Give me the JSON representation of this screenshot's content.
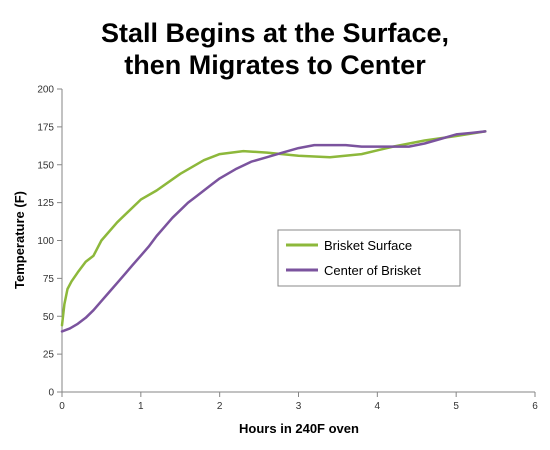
{
  "chart_data": {
    "type": "line",
    "title_lines": [
      "Stall  Begins at the Surface,",
      "then Migrates to Center"
    ],
    "xlabel": "Hours in 240F oven",
    "ylabel": "Temperature (F)",
    "xlim": [
      0,
      6
    ],
    "ylim": [
      0,
      200
    ],
    "xticks": [
      0,
      1,
      2,
      3,
      4,
      5,
      6
    ],
    "yticks": [
      0,
      25,
      50,
      75,
      100,
      125,
      150,
      175,
      200
    ],
    "grid": false,
    "legend_position": "center-right",
    "series": [
      {
        "name": "Brisket Surface",
        "color": "#8DB83B",
        "x": [
          0.0,
          0.03,
          0.07,
          0.12,
          0.2,
          0.3,
          0.4,
          0.5,
          0.7,
          1.0,
          1.2,
          1.5,
          1.8,
          2.0,
          2.3,
          2.6,
          3.0,
          3.4,
          3.8,
          4.2,
          4.6,
          5.0,
          5.37
        ],
        "y": [
          44,
          58,
          68,
          73,
          79,
          86,
          90,
          100,
          112,
          127,
          133,
          144,
          153,
          157,
          159,
          158,
          156,
          155,
          157,
          162,
          166,
          169,
          172
        ]
      },
      {
        "name": "Center of Brisket",
        "color": "#7B539E",
        "x": [
          0.0,
          0.1,
          0.2,
          0.3,
          0.4,
          0.5,
          0.6,
          0.7,
          0.8,
          0.9,
          1.0,
          1.1,
          1.2,
          1.3,
          1.4,
          1.5,
          1.6,
          1.7,
          1.8,
          1.9,
          2.0,
          2.2,
          2.4,
          2.6,
          2.8,
          3.0,
          3.2,
          3.4,
          3.6,
          3.8,
          4.0,
          4.2,
          4.4,
          4.6,
          4.8,
          5.0,
          5.2,
          5.37
        ],
        "y": [
          40,
          42,
          45,
          49,
          54,
          60,
          66,
          72,
          78,
          84,
          90,
          96,
          103,
          109,
          115,
          120,
          125,
          129,
          133,
          137,
          141,
          147,
          152,
          155,
          158,
          161,
          163,
          163,
          163,
          162,
          162,
          162,
          162,
          164,
          167,
          170,
          171,
          172
        ]
      }
    ]
  }
}
